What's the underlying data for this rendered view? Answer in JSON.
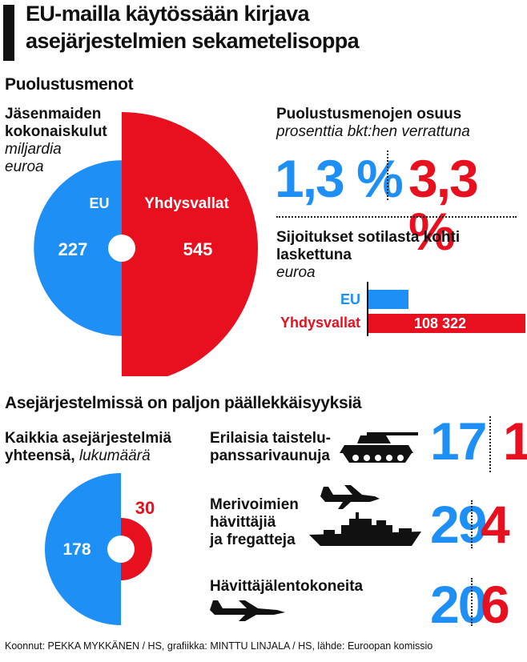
{
  "title": {
    "line1": "EU-mailla käytössään kirjava",
    "line2": "asejärjestelmien sekametelisoppa"
  },
  "colors": {
    "eu": "#1E90F5",
    "us": "#E8101E"
  },
  "section_defense": {
    "heading": "Puolustusmenot",
    "spending_label": {
      "line1": "Jäsenmaiden",
      "line2": "kokonaiskulut",
      "line3": "miljardia",
      "line4": "euroa"
    },
    "share_label": {
      "line1": "Puolustusmenojen osuus",
      "line2": "prosenttia bkt:hen verrattuna"
    },
    "per_soldier_label": {
      "line1": "Sijoitukset sotilasta kohti",
      "line2": "laskettuna",
      "line3": "euroa"
    }
  },
  "section_systems": {
    "heading": "Asejärjestelmissä on paljon päällekkäisyyksiä",
    "total_label": {
      "line1": "Kaikkia asejärjestelmiä",
      "line2a": "yhteensä, ",
      "line2b": "lukumäärä"
    },
    "rows": [
      {
        "label1": "Erilaisia taistelu-",
        "label2": "panssarivaunuja",
        "label3": "",
        "icon": "tank-icon",
        "eu": "17",
        "us": "1"
      },
      {
        "label1": "Merivoimien",
        "label2": "hävittäjiä",
        "label3": "ja fregatteja",
        "icon": "frigate-icon",
        "eu": "29",
        "us": "4"
      },
      {
        "label1": "Hävittäjälentokoneita",
        "label2": "",
        "label3": "",
        "icon": "fighter-jet-icon",
        "eu": "20",
        "us": "6"
      }
    ]
  },
  "source": "Koonnut: PEKKA MYKKÄNEN / HS, grafiikka: MINTTU LINJALA / HS, lähde: Euroopan komissio",
  "chart_data": [
    {
      "type": "pie",
      "title": "Jäsenmaiden kokonaiskulut",
      "unit": "miljardia euroa",
      "categories": [
        "EU",
        "Yhdysvallat"
      ],
      "values": [
        227,
        545
      ]
    },
    {
      "type": "table",
      "title": "Puolustusmenojen osuus",
      "unit": "prosenttia bkt:hen verrattuna",
      "categories": [
        "EU",
        "Yhdysvallat"
      ],
      "values": [
        "1,3 %",
        "3,3 %"
      ],
      "numeric": [
        1.3,
        3.3
      ]
    },
    {
      "type": "bar",
      "title": "Sijoitukset sotilasta kohti laskettuna",
      "unit": "euroa",
      "categories": [
        "EU",
        "Yhdysvallat"
      ],
      "values": [
        27639,
        108322
      ],
      "labels": [
        "27 639",
        "108 322"
      ]
    },
    {
      "type": "pie",
      "title": "Kaikkia asejärjestelmiä yhteensä",
      "unit": "lukumäärä",
      "categories": [
        "EU",
        "Yhdysvallat"
      ],
      "values": [
        178,
        30
      ]
    },
    {
      "type": "table",
      "title": "Asejärjestelmissä on paljon päällekkäisyyksiä",
      "categories": [
        "Erilaisia taistelupanssarivaunuja",
        "Merivoimien hävittäjiä ja fregatteja",
        "Hävittäjälentokoneita"
      ],
      "series": [
        {
          "name": "EU",
          "values": [
            17,
            29,
            20
          ]
        },
        {
          "name": "Yhdysvallat",
          "values": [
            1,
            4,
            6
          ]
        }
      ]
    }
  ]
}
